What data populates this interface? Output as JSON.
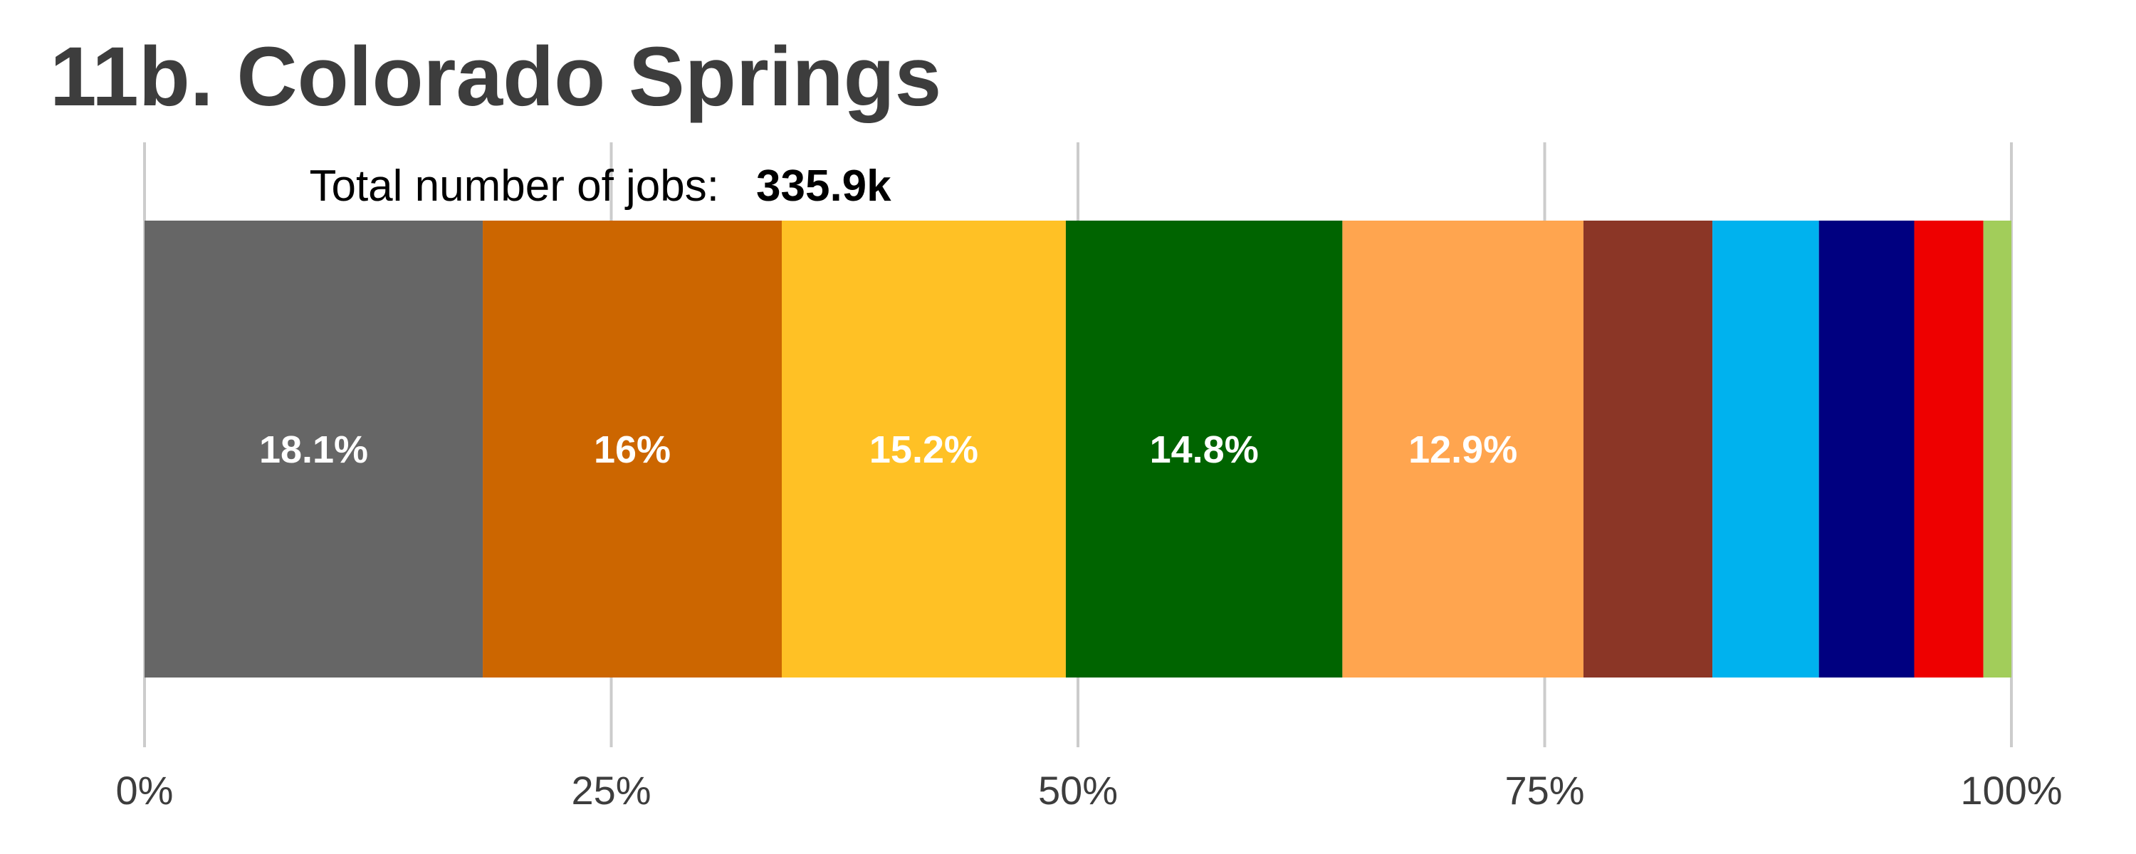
{
  "chart_data": {
    "type": "bar",
    "orientation": "horizontal-stacked",
    "title": "11b. Colorado Springs",
    "subtitle": {
      "label": "Total number of jobs:",
      "value": "335.9k"
    },
    "xlim": [
      0,
      100
    ],
    "x_ticks": [
      {
        "value": 0,
        "label": "0%"
      },
      {
        "value": 25,
        "label": "25%"
      },
      {
        "value": 50,
        "label": "50%"
      },
      {
        "value": 75,
        "label": "75%"
      },
      {
        "value": 100,
        "label": "100%"
      }
    ],
    "grid": true,
    "segments": [
      {
        "value": 18.1,
        "label": "18.1%",
        "color": "#666666"
      },
      {
        "value": 16.0,
        "label": "16%",
        "color": "#cc6600"
      },
      {
        "value": 15.2,
        "label": "15.2%",
        "color": "#ffc125"
      },
      {
        "value": 14.8,
        "label": "14.8%",
        "color": "#006400"
      },
      {
        "value": 12.9,
        "label": "12.9%",
        "color": "#ffa54f"
      },
      {
        "value": 6.9,
        "label": "",
        "color": "#8b3626"
      },
      {
        "value": 5.7,
        "label": "",
        "color": "#00b2ee"
      },
      {
        "value": 5.1,
        "label": "",
        "color": "#000080"
      },
      {
        "value": 3.7,
        "label": "",
        "color": "#ee0000"
      },
      {
        "value": 1.5,
        "label": "",
        "color": "#a2cd5a"
      }
    ]
  }
}
